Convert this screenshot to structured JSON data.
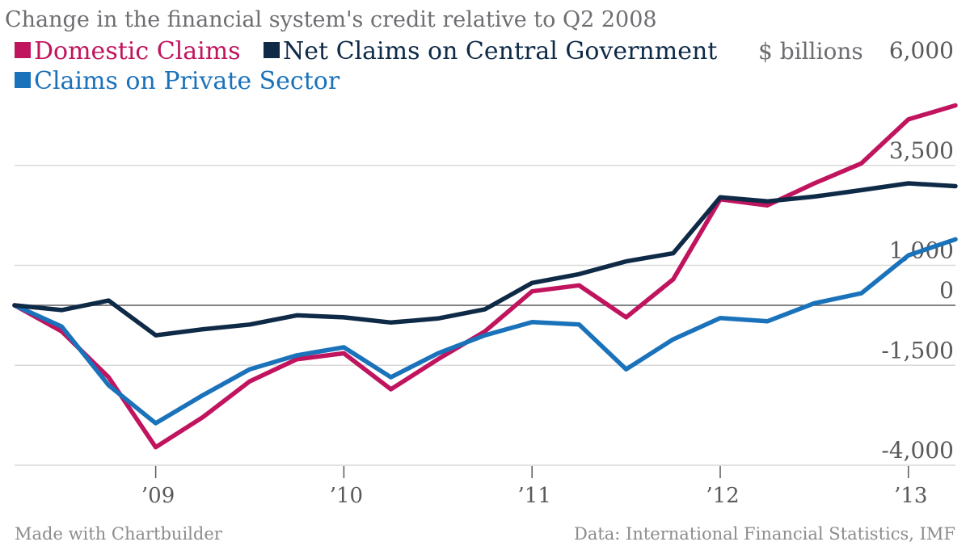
{
  "title": "Change in the financial system's credit relative to Q2 2008",
  "unit_label": "$ billions",
  "footer_left": "Made with Chartbuilder",
  "footer_right": "Data: International Financial Statistics, IMF",
  "colors": {
    "domestic": "#c0145e",
    "government": "#0e2a47",
    "private": "#1a72ba"
  },
  "chart_data": {
    "type": "line",
    "x_start": "Q2 2008",
    "x_step": "quarter",
    "x": [
      "Q2 2008",
      "Q3 2008",
      "Q4 2008",
      "Q1 2009",
      "Q2 2009",
      "Q3 2009",
      "Q4 2009",
      "Q1 2010",
      "Q2 2010",
      "Q3 2010",
      "Q4 2010",
      "Q1 2011",
      "Q2 2011",
      "Q3 2011",
      "Q4 2011",
      "Q1 2012",
      "Q2 2012",
      "Q3 2012",
      "Q4 2012",
      "Q1 2013",
      "Q2 2013"
    ],
    "xticks": [
      {
        "label": "’09",
        "at": "Q1 2009"
      },
      {
        "label": "’10",
        "at": "Q1 2010"
      },
      {
        "label": "’11",
        "at": "Q1 2011"
      },
      {
        "label": "’12",
        "at": "Q1 2012"
      },
      {
        "label": "’13",
        "at": "Q1 2013"
      }
    ],
    "yticks": [
      {
        "label": "6,000",
        "value": 6000
      },
      {
        "label": "3,500",
        "value": 3500
      },
      {
        "label": "1,000",
        "value": 1000
      },
      {
        "label": "0",
        "value": 0
      },
      {
        "label": "-1,500",
        "value": -1500
      },
      {
        "label": "-4,000",
        "value": -4000
      }
    ],
    "ylim": [
      -4000,
      6000
    ],
    "legend": "top-left",
    "grid": true,
    "series": [
      {
        "name": "Domestic Claims",
        "color_key": "domestic",
        "values": [
          0,
          -650,
          -1800,
          -3550,
          -2800,
          -1900,
          -1350,
          -1200,
          -2100,
          -1350,
          -650,
          350,
          500,
          -300,
          650,
          2650,
          2500,
          3050,
          3550,
          4650,
          5000
        ]
      },
      {
        "name": "Net Claims on Central Government",
        "color_key": "government",
        "values": [
          0,
          -120,
          120,
          -750,
          -600,
          -480,
          -250,
          -300,
          -430,
          -330,
          -100,
          560,
          780,
          1100,
          1300,
          2700,
          2600,
          2720,
          2880,
          3050,
          2980
        ]
      },
      {
        "name": "Claims on Private Sector",
        "color_key": "private",
        "values": [
          0,
          -530,
          -2000,
          -2950,
          -2250,
          -1600,
          -1250,
          -1050,
          -1800,
          -1200,
          -750,
          -420,
          -480,
          -1600,
          -850,
          -320,
          -400,
          50,
          300,
          1250,
          1650
        ]
      }
    ]
  }
}
